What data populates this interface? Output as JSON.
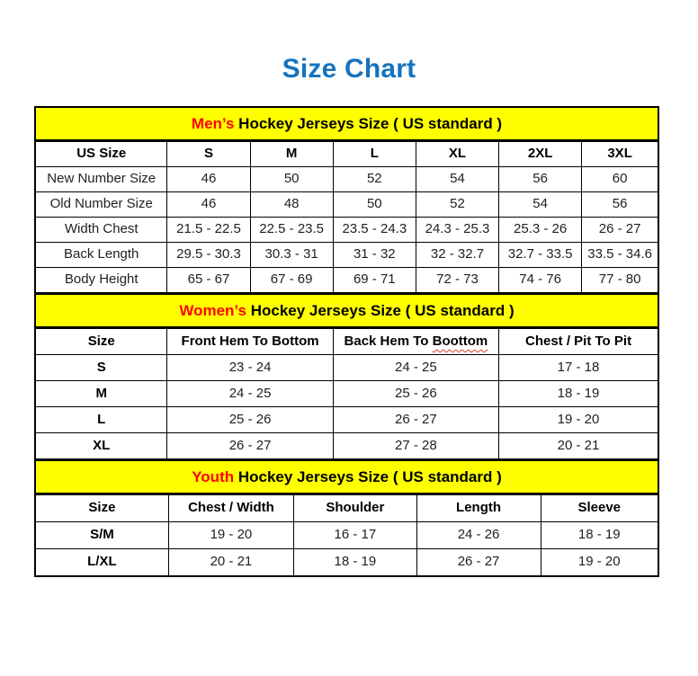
{
  "page": {
    "title": "Size Chart"
  },
  "colors": {
    "title_blue": "#1573BE",
    "band_yellow": "#FFFF00",
    "highlight_red": "#FF0000",
    "border": "#000000"
  },
  "chart_data": [
    {
      "type": "table",
      "id": "mens",
      "title_highlight": "Men’s",
      "title_rest": "Hockey Jerseys Size ( US standard )",
      "columns": [
        "US Size",
        "S",
        "M",
        "L",
        "XL",
        "2XL",
        "3XL"
      ],
      "col_widths": [
        "21.2%",
        "13.3%",
        "13.3%",
        "13.3%",
        "13.3%",
        "13.3%",
        "12.3%"
      ],
      "bold_row_header": false,
      "rows": [
        [
          "New Number Size",
          "46",
          "50",
          "52",
          "54",
          "56",
          "60"
        ],
        [
          "Old Number Size",
          "46",
          "48",
          "50",
          "52",
          "54",
          "56"
        ],
        [
          "Width Chest",
          "21.5 - 22.5",
          "22.5 - 23.5",
          "23.5 - 24.3",
          "24.3 - 25.3",
          "25.3 - 26",
          "26 - 27"
        ],
        [
          "Back Length",
          "29.5 - 30.3",
          "30.3 - 31",
          "31 - 32",
          "32 - 32.7",
          "32.7 - 33.5",
          "33.5 - 34.6"
        ],
        [
          "Body Height",
          "65 - 67",
          "67 - 69",
          "69 - 71",
          "72 - 73",
          "74 - 76",
          "77 - 80"
        ]
      ]
    },
    {
      "type": "table",
      "id": "womens",
      "title_highlight": "Women’s",
      "title_rest": "Hockey Jerseys Size ( US standard )",
      "columns": [
        "Size",
        "Front Hem To Bottom",
        "Back Hem To Boottom",
        "Chest / Pit To Pit"
      ],
      "squiggle_word": "Boottom",
      "col_widths": [
        "21.2%",
        "26.6%",
        "26.6%",
        "25.6%"
      ],
      "bold_row_header": true,
      "rows": [
        [
          "S",
          "23 - 24",
          "24 - 25",
          "17 - 18"
        ],
        [
          "M",
          "24 - 25",
          "25 - 26",
          "18 - 19"
        ],
        [
          "L",
          "25 - 26",
          "26 - 27",
          "19 - 20"
        ],
        [
          "XL",
          "26 - 27",
          "27 - 28",
          "20 - 21"
        ]
      ]
    },
    {
      "type": "table",
      "id": "youth",
      "title_highlight": "Youth",
      "title_rest": "Hockey Jerseys Size ( US standard )",
      "columns": [
        "Size",
        "Chest / Width",
        "Shoulder",
        "Length",
        "Sleeve"
      ],
      "col_widths": [
        "21.4%",
        "20.1%",
        "19.7%",
        "19.9%",
        "18.9%"
      ],
      "bold_row_header": true,
      "rows": [
        [
          "S/M",
          "19 - 20",
          "16 - 17",
          "24 - 26",
          "18 - 19"
        ],
        [
          "L/XL",
          "20 - 21",
          "18 - 19",
          "26 - 27",
          "19 - 20"
        ]
      ]
    }
  ]
}
